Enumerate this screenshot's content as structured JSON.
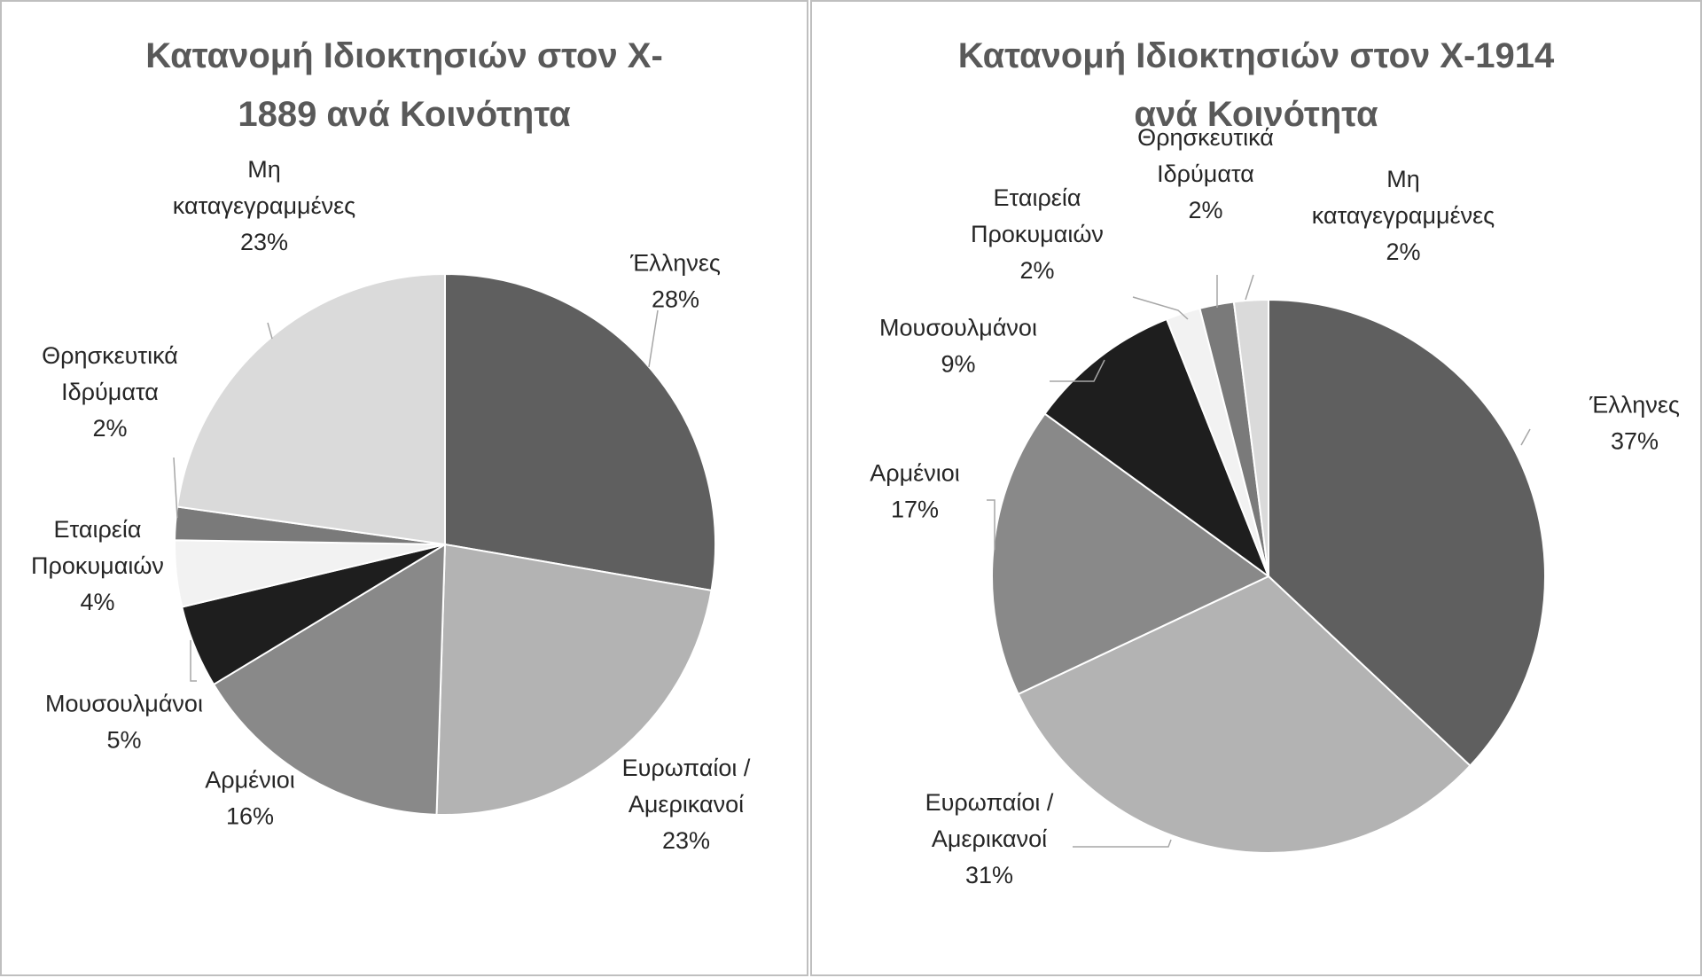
{
  "chart_data": [
    {
      "type": "pie",
      "title": "Κατανομή Ιδιοκτησιών στον Χ-1889 ανά Κοινότητα",
      "title_lines": [
        "Κατανομή Ιδιοκτησιών στον Χ-",
        "1889 ανά Κοινότητα"
      ],
      "slices": [
        {
          "name": "Έλληνες",
          "label_lines": [
            "Έλληνες"
          ],
          "value": 28,
          "display": "28%",
          "color": "#5f5f5f"
        },
        {
          "name": "Ευρωπαίοι / Αμερικανοί",
          "label_lines": [
            "Ευρωπαίοι /",
            "Αμερικανοί"
          ],
          "value": 23,
          "display": "23%",
          "color": "#b3b3b3"
        },
        {
          "name": "Αρμένιοι",
          "label_lines": [
            "Αρμένιοι"
          ],
          "value": 16,
          "display": "16%",
          "color": "#898989"
        },
        {
          "name": "Μουσουλμάνοι",
          "label_lines": [
            "Μουσουλμάνοι"
          ],
          "value": 5,
          "display": "5%",
          "color": "#1e1e1e"
        },
        {
          "name": "Εταιρεία Προκυμαιών",
          "label_lines": [
            "Εταιρεία",
            "Προκυμαιών"
          ],
          "value": 4,
          "display": "4%",
          "color": "#f2f2f2"
        },
        {
          "name": "Θρησκευτικά Ιδρύματα",
          "label_lines": [
            "Θρησκευτικά",
            "Ιδρύματα"
          ],
          "value": 2,
          "display": "2%",
          "color": "#7a7a7a"
        },
        {
          "name": "Μη καταγεγραμμένες",
          "label_lines": [
            "Μη",
            "καταγεγραμμένες"
          ],
          "value": 23,
          "display": "23%",
          "color": "#dadada"
        }
      ]
    },
    {
      "type": "pie",
      "title": "Κατανομή Ιδιοκτησιών στον Χ-1914 ανά Κοινότητα",
      "title_lines": [
        "Κατανομή Ιδιοκτησιών στον Χ-1914",
        "ανά Κοινότητα"
      ],
      "slices": [
        {
          "name": "Έλληνες",
          "label_lines": [
            "Έλληνες"
          ],
          "value": 37,
          "display": "37%",
          "color": "#5f5f5f"
        },
        {
          "name": "Ευρωπαίοι / Αμερικανοί",
          "label_lines": [
            "Ευρωπαίοι /",
            "Αμερικανοί"
          ],
          "value": 31,
          "display": "31%",
          "color": "#b3b3b3"
        },
        {
          "name": "Αρμένιοι",
          "label_lines": [
            "Αρμένιοι"
          ],
          "value": 17,
          "display": "17%",
          "color": "#898989"
        },
        {
          "name": "Μουσουλμάνοι",
          "label_lines": [
            "Μουσουλμάνοι"
          ],
          "value": 9,
          "display": "9%",
          "color": "#1e1e1e"
        },
        {
          "name": "Εταιρεία Προκυμαιών",
          "label_lines": [
            "Εταιρεία",
            "Προκυμαιών"
          ],
          "value": 2,
          "display": "2%",
          "color": "#f2f2f2"
        },
        {
          "name": "Θρησκευτικά Ιδρύματα",
          "label_lines": [
            "Θρησκευτικά",
            "Ιδρύματα"
          ],
          "value": 2,
          "display": "2%",
          "color": "#7a7a7a"
        },
        {
          "name": "Μη καταγεγραμμένες",
          "label_lines": [
            "Μη",
            "καταγεγραμμένες"
          ],
          "value": 2,
          "display": "2%",
          "color": "#dadada"
        }
      ]
    }
  ]
}
